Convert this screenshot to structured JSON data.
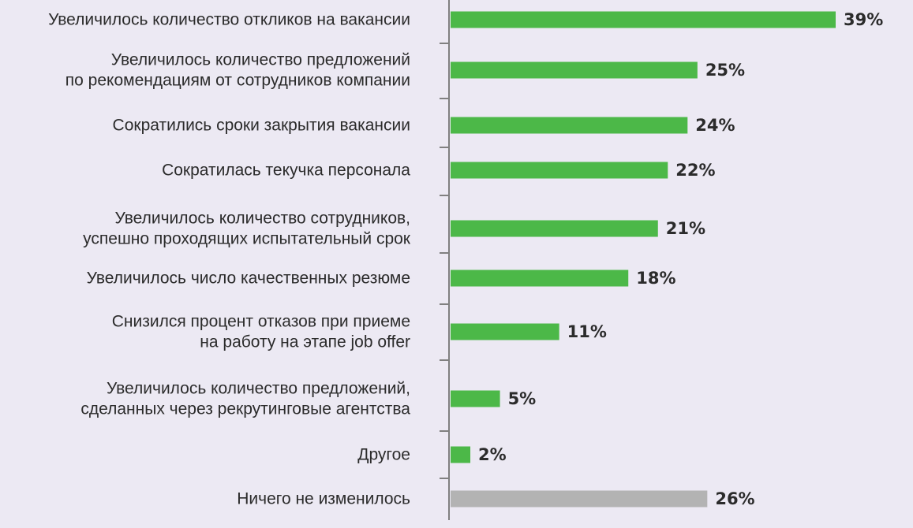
{
  "chart_data": {
    "type": "bar",
    "orientation": "horizontal",
    "categories": [
      [
        "Увеличилось количество откликов на вакансии"
      ],
      [
        "Увеличилось количество предложений",
        "по рекомендациям от сотрудников компании"
      ],
      [
        "Сократились сроки закрытия вакансии"
      ],
      [
        "Сократилась текучка персонала"
      ],
      [
        "Увеличилось количество сотрудников,",
        "успешно проходящих испытательный срок"
      ],
      [
        "Увеличилось число качественных резюме"
      ],
      [
        "Снизился процент отказов при приеме",
        "на работу на этапе job offer"
      ],
      [
        "Увеличилось количество предложений,",
        "сделанных через рекрутинговые агентства"
      ],
      [
        "Другое"
      ],
      [
        "Ничего не изменилось"
      ]
    ],
    "values": [
      39,
      25,
      24,
      22,
      21,
      18,
      11,
      5,
      2,
      26
    ],
    "value_labels": [
      "39%",
      "25%",
      "24%",
      "22%",
      "21%",
      "18%",
      "11%",
      "5%",
      "2%",
      "26%"
    ],
    "bar_colors": [
      "#4cb848",
      "#4cb848",
      "#4cb848",
      "#4cb848",
      "#4cb848",
      "#4cb848",
      "#4cb848",
      "#4cb848",
      "#4cb848",
      "#b3b3b3"
    ],
    "xlim": [
      0,
      39
    ],
    "grid": false,
    "legend": "none",
    "title": "",
    "xlabel": "",
    "ylabel": ""
  },
  "colors": {
    "background": "#ece9f3",
    "bar": "#4cb848",
    "bar_neutral": "#b3b3b3",
    "axis": "#808080",
    "text": "#2b2b2b"
  }
}
